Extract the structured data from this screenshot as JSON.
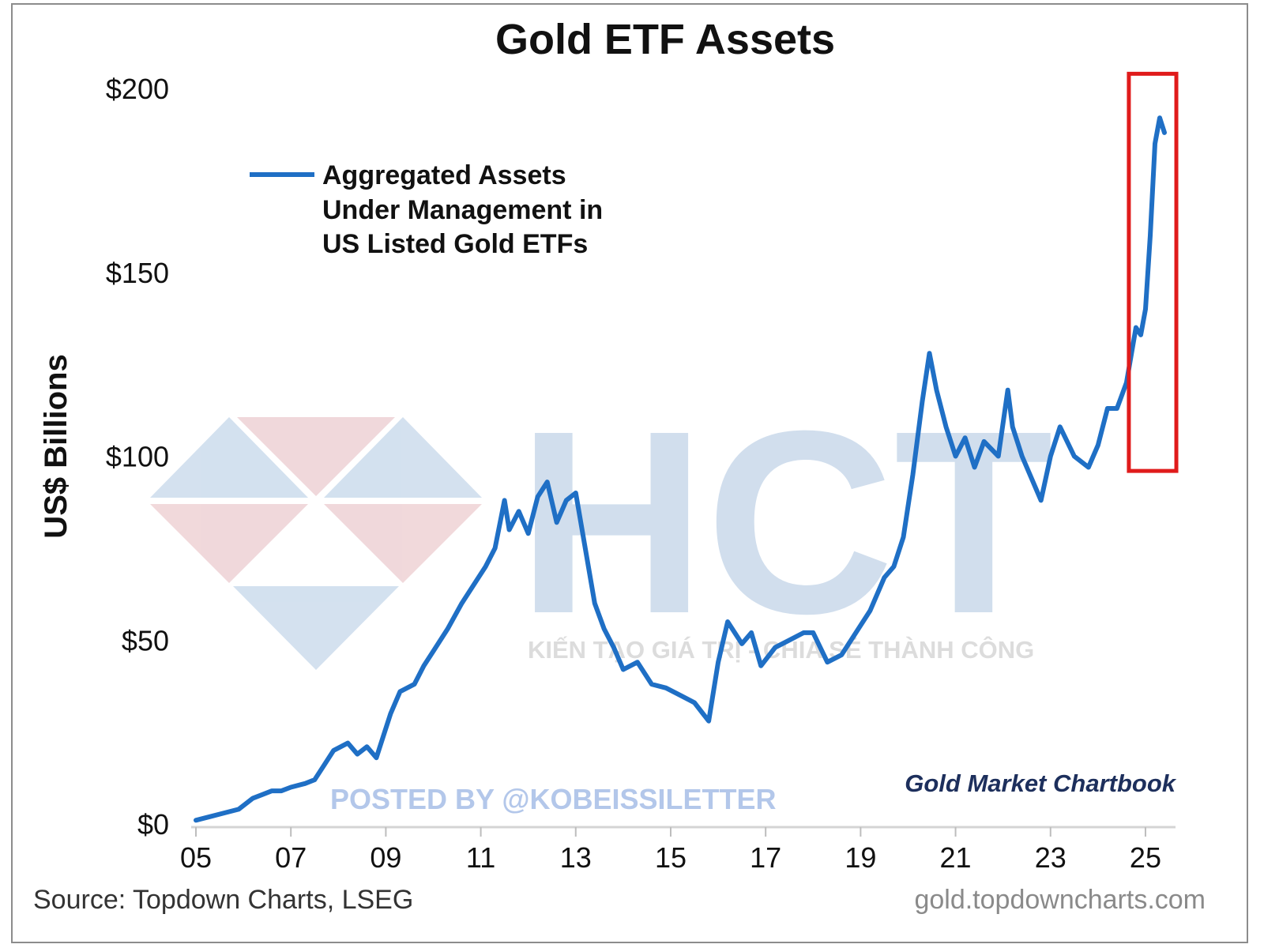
{
  "chart_data": {
    "type": "line",
    "title": "Gold ETF Assets",
    "ylabel": "US$ Billions",
    "xlabel": "",
    "ylim": [
      0,
      200
    ],
    "xlim": [
      2005,
      2025.4
    ],
    "yticks": [
      0,
      50,
      100,
      150,
      200
    ],
    "ytick_labels": [
      "$0",
      "$50",
      "$100",
      "$150",
      "$200"
    ],
    "xtick_labels": [
      "05",
      "07",
      "09",
      "11",
      "13",
      "15",
      "17",
      "19",
      "21",
      "23",
      "25"
    ],
    "legend_placement": "top-left",
    "grid": false,
    "series": [
      {
        "name": "Aggregated Assets Under Management in US Listed Gold ETFs",
        "color": "#1f6fc5",
        "x": [
          2005.0,
          2005.3,
          2005.6,
          2005.9,
          2006.2,
          2006.4,
          2006.6,
          2006.8,
          2007.0,
          2007.3,
          2007.5,
          2007.7,
          2007.9,
          2008.2,
          2008.4,
          2008.6,
          2008.8,
          2008.9,
          2009.1,
          2009.3,
          2009.6,
          2009.8,
          2010.0,
          2010.3,
          2010.6,
          2010.9,
          2011.1,
          2011.3,
          2011.5,
          2011.6,
          2011.8,
          2012.0,
          2012.2,
          2012.4,
          2012.6,
          2012.8,
          2013.0,
          2013.2,
          2013.4,
          2013.6,
          2013.8,
          2014.0,
          2014.3,
          2014.6,
          2014.9,
          2015.2,
          2015.5,
          2015.8,
          2016.0,
          2016.2,
          2016.5,
          2016.7,
          2016.9,
          2017.2,
          2017.5,
          2017.8,
          2018.0,
          2018.3,
          2018.6,
          2018.9,
          2019.2,
          2019.5,
          2019.7,
          2019.9,
          2020.1,
          2020.3,
          2020.45,
          2020.6,
          2020.8,
          2021.0,
          2021.2,
          2021.4,
          2021.6,
          2021.9,
          2022.1,
          2022.2,
          2022.4,
          2022.6,
          2022.8,
          2023.0,
          2023.2,
          2023.5,
          2023.8,
          2024.0,
          2024.2,
          2024.4,
          2024.6,
          2024.8,
          2024.9,
          2025.0,
          2025.1,
          2025.2,
          2025.3,
          2025.4
        ],
        "values": [
          1,
          2,
          3,
          4,
          7,
          8,
          9,
          9,
          10,
          11,
          12,
          16,
          20,
          22,
          19,
          21,
          18,
          22,
          30,
          36,
          38,
          43,
          47,
          53,
          60,
          66,
          70,
          75,
          88,
          80,
          85,
          79,
          89,
          93,
          82,
          88,
          90,
          75,
          60,
          53,
          48,
          42,
          44,
          38,
          37,
          35,
          33,
          28,
          44,
          55,
          49,
          52,
          43,
          48,
          50,
          52,
          52,
          44,
          46,
          52,
          58,
          67,
          70,
          78,
          95,
          115,
          128,
          118,
          108,
          100,
          105,
          97,
          104,
          100,
          118,
          108,
          100,
          94,
          88,
          100,
          108,
          100,
          97,
          103,
          113,
          113,
          120,
          135,
          133,
          140,
          160,
          185,
          192,
          188
        ]
      }
    ],
    "annotations": [
      {
        "type": "highlight-box",
        "x_range": [
          2024.65,
          2025.65
        ],
        "y_range": [
          96,
          204
        ],
        "color": "#e01b1b"
      }
    ],
    "source": "Source: Topdown Charts, LSEG",
    "website": "gold.topdowncharts.com",
    "brand": "Gold Market Chartbook"
  },
  "watermarks": {
    "posted_by": "POSTED BY @KOBEISSILETTER",
    "logo_letters": "HCT",
    "logo_tagline": "KIẾN TẠO GIÁ TRỊ - CHIA SẺ THÀNH CÔNG"
  },
  "legend_lines": [
    "Aggregated Assets",
    "Under Management in",
    "US Listed Gold ETFs"
  ]
}
